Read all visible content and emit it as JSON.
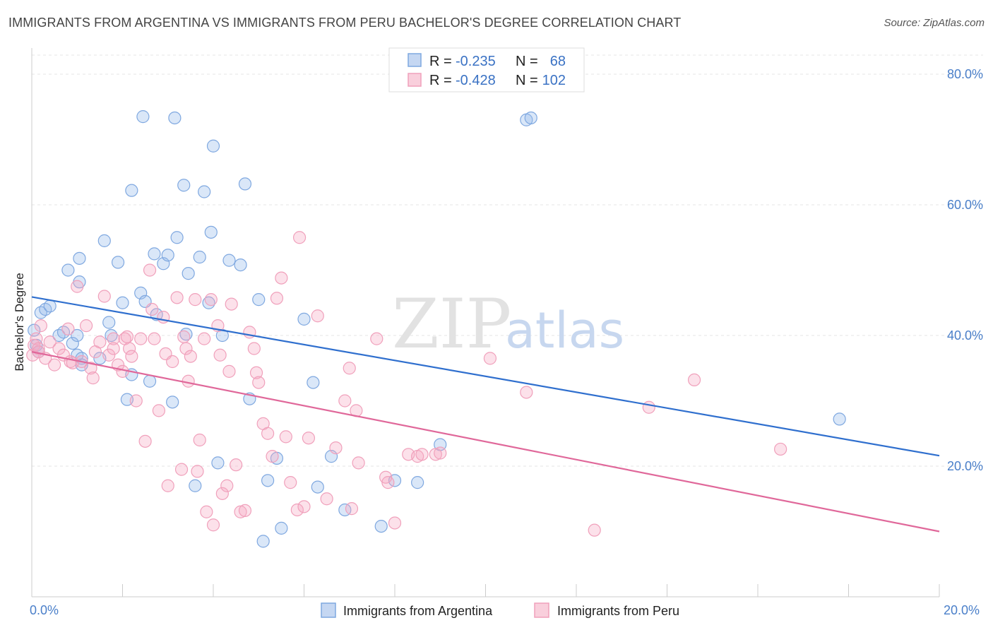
{
  "title": "IMMIGRANTS FROM ARGENTINA VS IMMIGRANTS FROM PERU BACHELOR'S DEGREE CORRELATION CHART",
  "source": "Source: ZipAtlas.com",
  "watermark": {
    "zip": "ZIP",
    "atlas": "atlas"
  },
  "legend_box": {
    "rows": [
      {
        "r_label": "R =",
        "r_value": "-0.235",
        "n_label": "N =",
        "n_value": "68",
        "color": "#7fa8e0"
      },
      {
        "r_label": "R =",
        "r_value": "-0.428",
        "n_label": "N =",
        "n_value": "102",
        "color": "#f0a0bb"
      }
    ]
  },
  "chart_data": {
    "type": "scatter",
    "title": "IMMIGRANTS FROM ARGENTINA VS IMMIGRANTS FROM PERU BACHELOR'S DEGREE CORRELATION CHART",
    "xlabel": "",
    "ylabel": "Bachelor's Degree",
    "xlim": [
      0,
      20
    ],
    "ylim": [
      0,
      84
    ],
    "x_tick_labels": [
      "0.0%",
      "20.0%"
    ],
    "y_tick_labels": [
      "20.0%",
      "40.0%",
      "60.0%",
      "80.0%"
    ],
    "y_ticks": [
      20,
      40,
      60,
      80
    ],
    "legend": [
      "Immigrants from Argentina",
      "Immigrants from Peru"
    ],
    "series": [
      {
        "name": "Immigrants from Argentina",
        "color": "#7fa8e0",
        "trend": {
          "x0": 0,
          "y0": 45.9,
          "x1": 20,
          "y1": 21.6
        },
        "points": [
          [
            0.05,
            40.8
          ],
          [
            0.1,
            38.5
          ],
          [
            0.15,
            37.5
          ],
          [
            0.2,
            43.5
          ],
          [
            0.3,
            44.0
          ],
          [
            0.4,
            44.5
          ],
          [
            0.6,
            40.0
          ],
          [
            0.7,
            40.5
          ],
          [
            0.8,
            50.0
          ],
          [
            0.9,
            38.8
          ],
          [
            1.0,
            37.0
          ],
          [
            1.05,
            48.2
          ],
          [
            1.1,
            36.5
          ],
          [
            1.0,
            40.0
          ],
          [
            1.5,
            36.5
          ],
          [
            1.05,
            51.8
          ],
          [
            1.1,
            35.5
          ],
          [
            1.6,
            54.5
          ],
          [
            1.75,
            40.0
          ],
          [
            1.7,
            42.0
          ],
          [
            1.9,
            51.2
          ],
          [
            2.0,
            45.0
          ],
          [
            2.1,
            30.2
          ],
          [
            2.2,
            34.0
          ],
          [
            2.2,
            62.2
          ],
          [
            2.4,
            46.5
          ],
          [
            2.45,
            73.5
          ],
          [
            2.5,
            45.2
          ],
          [
            2.6,
            33.0
          ],
          [
            2.7,
            52.5
          ],
          [
            2.75,
            43.2
          ],
          [
            2.9,
            51.0
          ],
          [
            3.0,
            52.3
          ],
          [
            3.1,
            29.8
          ],
          [
            3.15,
            73.3
          ],
          [
            3.2,
            55.0
          ],
          [
            3.35,
            63.0
          ],
          [
            3.4,
            40.2
          ],
          [
            3.45,
            49.5
          ],
          [
            3.6,
            17.0
          ],
          [
            3.7,
            52.0
          ],
          [
            3.8,
            62.0
          ],
          [
            3.9,
            45.0
          ],
          [
            3.95,
            55.8
          ],
          [
            4.0,
            69.0
          ],
          [
            4.1,
            20.5
          ],
          [
            4.2,
            40.0
          ],
          [
            4.35,
            51.5
          ],
          [
            4.6,
            50.8
          ],
          [
            4.7,
            63.2
          ],
          [
            4.8,
            30.3
          ],
          [
            5.0,
            45.5
          ],
          [
            5.1,
            8.5
          ],
          [
            5.2,
            17.8
          ],
          [
            5.4,
            21.2
          ],
          [
            5.5,
            10.5
          ],
          [
            6.0,
            42.5
          ],
          [
            6.2,
            32.8
          ],
          [
            6.3,
            16.8
          ],
          [
            6.6,
            21.5
          ],
          [
            6.9,
            13.3
          ],
          [
            7.7,
            10.8
          ],
          [
            8.0,
            17.8
          ],
          [
            8.5,
            17.5
          ],
          [
            9.0,
            23.3
          ],
          [
            10.9,
            73.0
          ],
          [
            11.0,
            73.3
          ],
          [
            17.8,
            27.2
          ]
        ]
      },
      {
        "name": "Immigrants from Peru",
        "color": "#f0a0bb",
        "trend": {
          "x0": 0,
          "y0": 37.5,
          "x1": 20,
          "y1": 10.0
        },
        "points": [
          [
            0.02,
            37.0
          ],
          [
            0.05,
            38.5
          ],
          [
            0.1,
            39.5
          ],
          [
            0.15,
            38.0
          ],
          [
            0.2,
            41.5
          ],
          [
            0.3,
            36.5
          ],
          [
            0.4,
            39.0
          ],
          [
            0.5,
            35.5
          ],
          [
            0.6,
            38.0
          ],
          [
            0.7,
            37.0
          ],
          [
            0.8,
            41.0
          ],
          [
            0.85,
            36.0
          ],
          [
            0.9,
            35.8
          ],
          [
            1.0,
            47.5
          ],
          [
            1.1,
            36.0
          ],
          [
            1.2,
            41.5
          ],
          [
            1.3,
            35.0
          ],
          [
            1.35,
            33.5
          ],
          [
            1.4,
            37.5
          ],
          [
            1.5,
            39.0
          ],
          [
            1.6,
            46.0
          ],
          [
            1.7,
            37.0
          ],
          [
            1.8,
            39.5
          ],
          [
            1.9,
            35.5
          ],
          [
            2.0,
            34.5
          ],
          [
            2.05,
            39.5
          ],
          [
            2.1,
            39.8
          ],
          [
            2.15,
            38.0
          ],
          [
            2.2,
            36.8
          ],
          [
            2.3,
            30.0
          ],
          [
            2.4,
            39.5
          ],
          [
            2.5,
            23.8
          ],
          [
            2.6,
            50.0
          ],
          [
            2.65,
            44.0
          ],
          [
            2.7,
            39.5
          ],
          [
            2.8,
            28.5
          ],
          [
            2.9,
            42.8
          ],
          [
            2.95,
            37.2
          ],
          [
            3.0,
            17.0
          ],
          [
            3.1,
            36.0
          ],
          [
            3.2,
            45.8
          ],
          [
            3.3,
            19.5
          ],
          [
            3.35,
            39.8
          ],
          [
            3.4,
            38.0
          ],
          [
            3.45,
            33.0
          ],
          [
            3.5,
            36.8
          ],
          [
            3.6,
            45.5
          ],
          [
            3.65,
            19.2
          ],
          [
            3.7,
            24.0
          ],
          [
            3.8,
            39.5
          ],
          [
            3.85,
            13.0
          ],
          [
            3.95,
            45.5
          ],
          [
            4.0,
            11.0
          ],
          [
            4.1,
            41.5
          ],
          [
            4.15,
            37.0
          ],
          [
            4.2,
            15.8
          ],
          [
            4.3,
            17.0
          ],
          [
            4.35,
            34.5
          ],
          [
            4.4,
            44.8
          ],
          [
            4.5,
            20.2
          ],
          [
            4.6,
            13.0
          ],
          [
            4.7,
            13.2
          ],
          [
            4.8,
            40.5
          ],
          [
            4.9,
            38.0
          ],
          [
            4.95,
            34.3
          ],
          [
            5.0,
            32.8
          ],
          [
            5.1,
            26.5
          ],
          [
            5.2,
            25.0
          ],
          [
            5.3,
            21.5
          ],
          [
            5.4,
            45.7
          ],
          [
            5.5,
            48.8
          ],
          [
            5.6,
            24.5
          ],
          [
            5.7,
            17.5
          ],
          [
            5.85,
            13.3
          ],
          [
            5.9,
            55.0
          ],
          [
            6.0,
            13.8
          ],
          [
            6.1,
            24.3
          ],
          [
            6.3,
            43.0
          ],
          [
            6.5,
            15.0
          ],
          [
            6.7,
            22.8
          ],
          [
            6.9,
            30.0
          ],
          [
            7.0,
            35.0
          ],
          [
            7.05,
            13.5
          ],
          [
            7.15,
            28.5
          ],
          [
            7.2,
            20.5
          ],
          [
            7.6,
            39.5
          ],
          [
            7.8,
            18.3
          ],
          [
            7.85,
            17.5
          ],
          [
            8.0,
            11.3
          ],
          [
            8.3,
            21.8
          ],
          [
            8.5,
            21.5
          ],
          [
            8.6,
            21.8
          ],
          [
            8.9,
            21.8
          ],
          [
            9.0,
            22.0
          ],
          [
            10.1,
            36.5
          ],
          [
            10.9,
            31.3
          ],
          [
            12.4,
            10.2
          ],
          [
            13.6,
            29.0
          ],
          [
            14.6,
            33.2
          ],
          [
            16.5,
            22.6
          ],
          [
            0.15,
            37.5
          ],
          [
            1.8,
            38.0
          ]
        ]
      }
    ]
  }
}
